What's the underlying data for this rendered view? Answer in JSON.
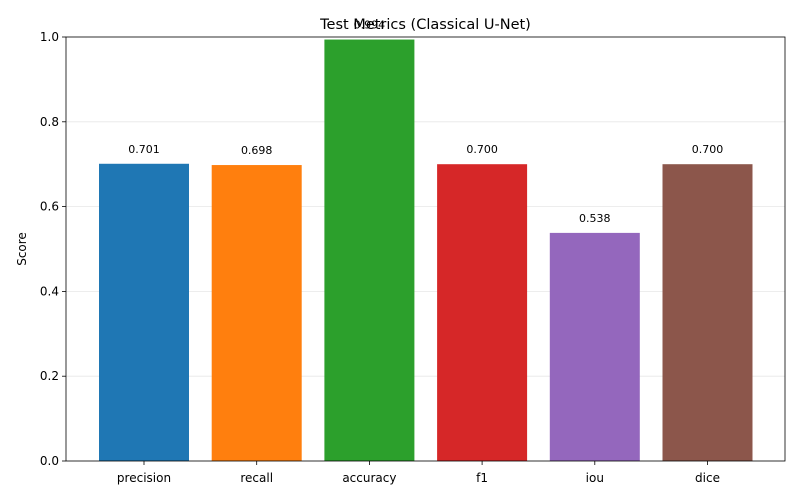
{
  "chart_data": {
    "type": "bar",
    "title": "Test Metrics (Classical U-Net)",
    "xlabel": "",
    "ylabel": "Score",
    "ylim": [
      0,
      1
    ],
    "yticks": [
      0.0,
      0.2,
      0.4,
      0.6,
      0.8,
      1.0
    ],
    "ytick_labels": [
      "0.0",
      "0.2",
      "0.4",
      "0.6",
      "0.8",
      "1.0"
    ],
    "grid": {
      "y": true,
      "x": false
    },
    "categories": [
      "precision",
      "recall",
      "accuracy",
      "f1",
      "iou",
      "dice"
    ],
    "values": [
      0.701,
      0.698,
      0.994,
      0.7,
      0.538,
      0.7
    ],
    "value_labels": [
      "0.701",
      "0.698",
      "0.994",
      "0.700",
      "0.538",
      "0.700"
    ],
    "colors": [
      "#1f77b4",
      "#ff7f0e",
      "#2ca02c",
      "#d62728",
      "#9467bd",
      "#8c564b"
    ]
  }
}
